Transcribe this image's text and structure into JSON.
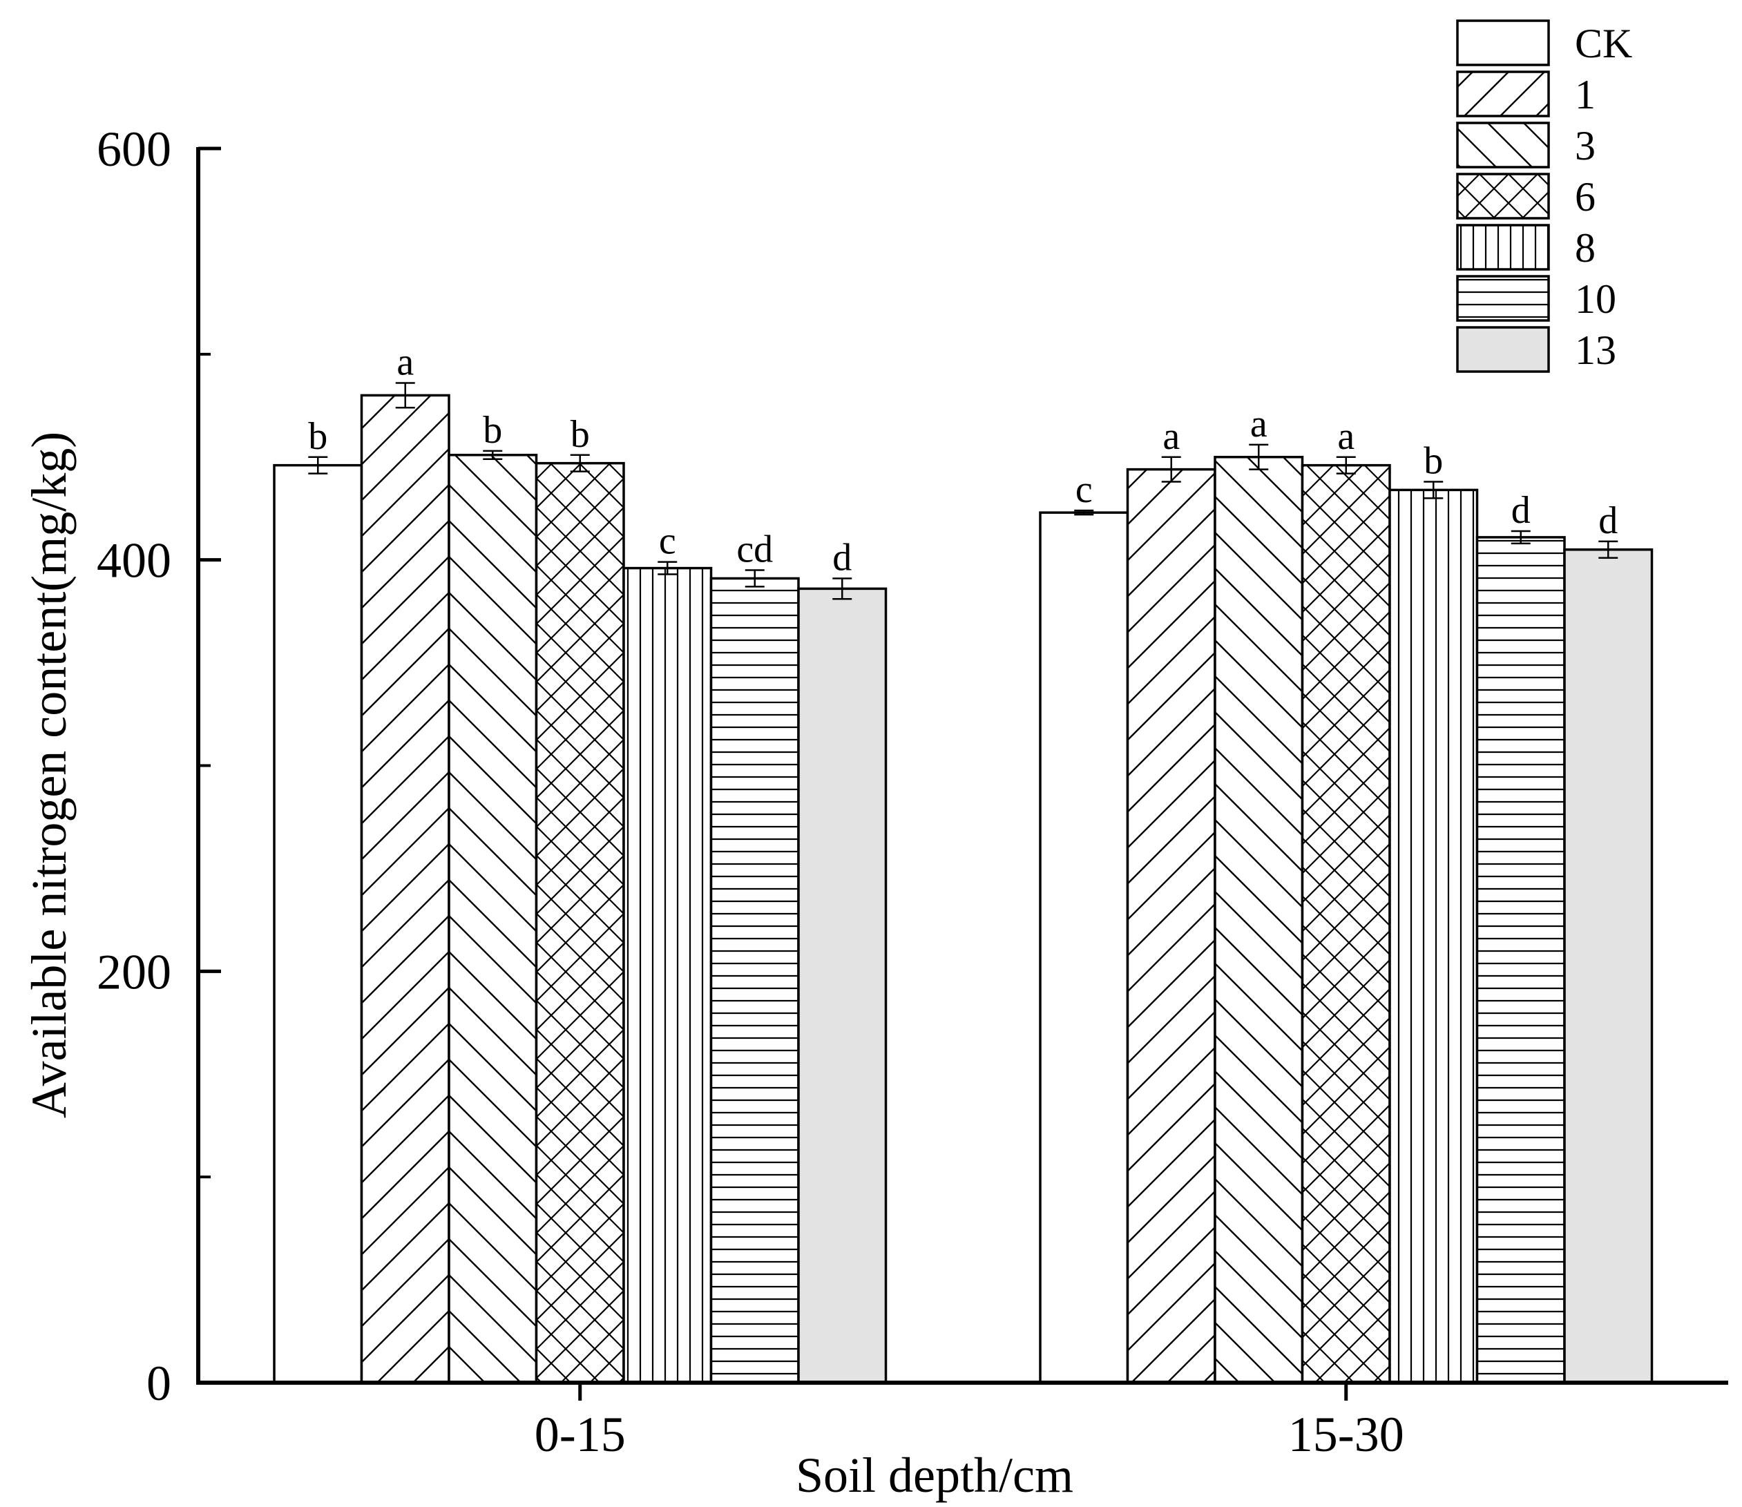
{
  "chart_data": {
    "type": "bar",
    "title": "",
    "xlabel": "Soil depth/cm",
    "ylabel": "Available nitrogen content(mg/kg)",
    "ylim": [
      0,
      600
    ],
    "yticks": [
      0,
      200,
      400,
      600
    ],
    "ytick_labels": [
      "0",
      "200",
      "400",
      "600"
    ],
    "categories": [
      "0-15",
      "15-30"
    ],
    "legend_position": "top-right",
    "series": [
      {
        "name": "CK",
        "pattern": "none",
        "values": [
          446,
          423
        ],
        "errors": [
          4,
          1
        ],
        "significance": [
          "b",
          "c"
        ]
      },
      {
        "name": "1",
        "pattern": "diag-up",
        "values": [
          480,
          444
        ],
        "errors": [
          6,
          6
        ],
        "significance": [
          "a",
          "a"
        ]
      },
      {
        "name": "3",
        "pattern": "diag-down",
        "values": [
          451,
          450
        ],
        "errors": [
          2,
          6
        ],
        "significance": [
          "b",
          "a"
        ]
      },
      {
        "name": "6",
        "pattern": "crosshatch",
        "values": [
          447,
          446
        ],
        "errors": [
          4,
          4
        ],
        "significance": [
          "b",
          "a"
        ]
      },
      {
        "name": "8",
        "pattern": "vertical",
        "values": [
          396,
          434
        ],
        "errors": [
          3,
          4
        ],
        "significance": [
          "c",
          "b"
        ]
      },
      {
        "name": "10",
        "pattern": "horizontal",
        "values": [
          391,
          411
        ],
        "errors": [
          4,
          3
        ],
        "significance": [
          "cd",
          "d"
        ]
      },
      {
        "name": "13",
        "pattern": "gray",
        "values": [
          386,
          405
        ],
        "errors": [
          5,
          4
        ],
        "significance": [
          "d",
          "d"
        ]
      }
    ]
  },
  "colors": {
    "axis": "#000000",
    "bar_stroke": "#000000",
    "bar_fill": "#ffffff",
    "gray_fill": "#e3e3e3"
  }
}
